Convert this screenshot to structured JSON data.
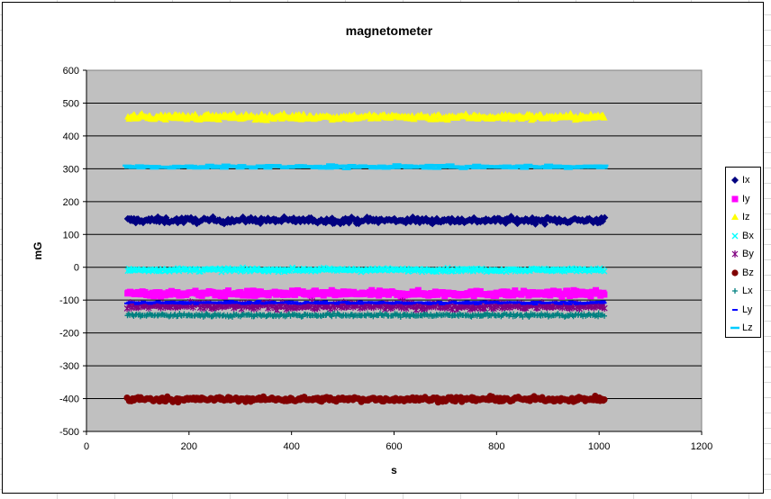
{
  "chart_data": {
    "type": "scatter",
    "title": "magnetometer",
    "xlabel": "s",
    "ylabel": "mG",
    "xlim": [
      0,
      1200
    ],
    "ylim": [
      -500,
      600
    ],
    "x_ticks": [
      0,
      200,
      400,
      600,
      800,
      1000,
      1200
    ],
    "y_ticks": [
      600,
      500,
      400,
      300,
      200,
      100,
      0,
      -100,
      -200,
      -300,
      -400,
      -500
    ],
    "grid": "horizontal major",
    "plot_background": "#c0c0c0",
    "legend_position": "right",
    "x_range": [
      80,
      1010
    ],
    "series": [
      {
        "name": "Ix",
        "marker": "diamond",
        "color": "#000080",
        "mean": 143,
        "noise": 9
      },
      {
        "name": "Iy",
        "marker": "square",
        "color": "#ff00ff",
        "mean": -80,
        "noise": 8
      },
      {
        "name": "Iz",
        "marker": "triangle",
        "color": "#ffff00",
        "mean": 458,
        "noise": 9
      },
      {
        "name": "Bx",
        "marker": "x",
        "color": "#00ffff",
        "mean": -8,
        "noise": 5
      },
      {
        "name": "By",
        "marker": "star",
        "color": "#800080",
        "mean": -118,
        "noise": 10
      },
      {
        "name": "Bz",
        "marker": "circle",
        "color": "#800000",
        "mean": -402,
        "noise": 7
      },
      {
        "name": "Lx",
        "marker": "plus",
        "color": "#008080",
        "mean": -146,
        "noise": 5
      },
      {
        "name": "Ly",
        "marker": "dash",
        "color": "#0000ff",
        "mean": -108,
        "noise": 4
      },
      {
        "name": "Lz",
        "marker": "longdash",
        "color": "#00ccff",
        "mean": 306,
        "noise": 6
      }
    ]
  }
}
